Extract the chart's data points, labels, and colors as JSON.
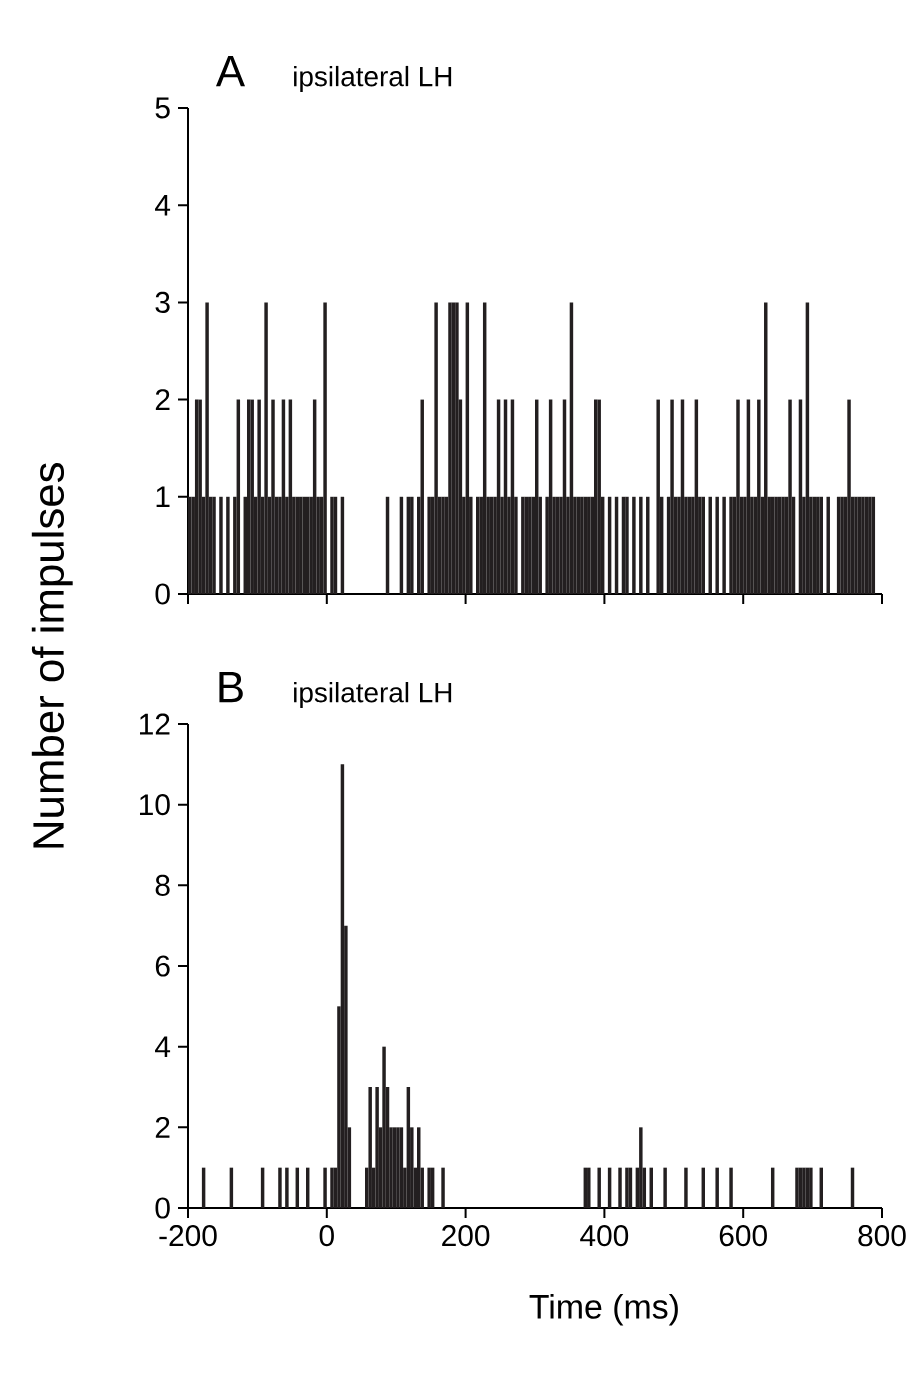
{
  "chart_data": [
    {
      "type": "histogram",
      "title": "ipsilateral LH",
      "annotations": [
        "A"
      ],
      "color": "#231f20",
      "bins": [
        -200,
        -195,
        -190,
        -185,
        -180,
        -175,
        -170,
        -165,
        -160,
        -155,
        -150,
        -145,
        -140,
        -135,
        -130,
        -125,
        -120,
        -115,
        -110,
        -105,
        -100,
        -95,
        -90,
        -85,
        -80,
        -75,
        -70,
        -65,
        -60,
        -55,
        -50,
        -45,
        -40,
        -35,
        -30,
        -25,
        -20,
        -15,
        -10,
        -5,
        0,
        5,
        10,
        15,
        20,
        25,
        30,
        35,
        40,
        45,
        50,
        55,
        60,
        65,
        70,
        75,
        80,
        85,
        90,
        95,
        100,
        105,
        110,
        115,
        120,
        125,
        130,
        135,
        140,
        145,
        150,
        155,
        160,
        165,
        170,
        175,
        180,
        185,
        190,
        195,
        200,
        205,
        210,
        215,
        220,
        225,
        230,
        235,
        240,
        245,
        250,
        255,
        260,
        265,
        270,
        275,
        280,
        285,
        290,
        295,
        300,
        305,
        310,
        315,
        320,
        325,
        330,
        335,
        340,
        345,
        350,
        355,
        360,
        365,
        370,
        375,
        380,
        385,
        390,
        395,
        400,
        405,
        410,
        415,
        420,
        425,
        430,
        435,
        440,
        445,
        450,
        455,
        460,
        465,
        470,
        475,
        480,
        485,
        490,
        495,
        500,
        505,
        510,
        515,
        520,
        525,
        530,
        535,
        540,
        545,
        550,
        555,
        560,
        565,
        570,
        575,
        580,
        585,
        590,
        595,
        600,
        605,
        610,
        615,
        620,
        625,
        630,
        635,
        640,
        645,
        650,
        655,
        660,
        665,
        670,
        675,
        680,
        685,
        690,
        695,
        700,
        705,
        710,
        715,
        720,
        725,
        730,
        735,
        740,
        745,
        750,
        755,
        760,
        765,
        770,
        775,
        780,
        785,
        790,
        795,
        800
      ],
      "values": [
        1,
        1,
        2,
        2,
        1,
        3,
        1,
        1,
        0,
        1,
        0,
        1,
        0,
        1,
        2,
        0,
        1,
        2,
        2,
        1,
        2,
        1,
        3,
        1,
        2,
        1,
        1,
        2,
        1,
        2,
        1,
        1,
        1,
        1,
        1,
        1,
        2,
        1,
        1,
        3,
        0,
        1,
        1,
        0,
        1,
        0,
        0,
        0,
        0,
        0,
        0,
        0,
        0,
        0,
        0,
        0,
        0,
        1,
        0,
        0,
        0,
        1,
        0,
        1,
        1,
        0,
        1,
        2,
        0,
        1,
        1,
        3,
        1,
        1,
        1,
        3,
        3,
        3,
        2,
        1,
        3,
        1,
        0,
        1,
        1,
        3,
        1,
        1,
        1,
        2,
        1,
        2,
        1,
        2,
        1,
        0,
        1,
        1,
        1,
        1,
        2,
        1,
        0,
        1,
        2,
        1,
        1,
        1,
        2,
        1,
        3,
        1,
        1,
        1,
        1,
        1,
        1,
        2,
        2,
        1,
        0,
        1,
        0,
        1,
        0,
        1,
        1,
        0,
        1,
        0,
        1,
        0,
        1,
        0,
        0,
        2,
        1,
        0,
        1,
        2,
        1,
        1,
        2,
        1,
        1,
        1,
        2,
        1,
        1,
        0,
        1,
        0,
        1,
        0,
        1,
        0,
        1,
        1,
        2,
        1,
        1,
        2,
        1,
        1,
        2,
        1,
        3,
        1,
        1,
        1,
        1,
        1,
        1,
        2,
        1,
        0,
        2,
        1,
        3,
        1,
        1,
        1,
        1,
        0,
        1,
        0,
        0,
        1,
        1,
        1,
        2,
        1,
        1,
        1,
        1,
        1,
        1,
        1,
        0,
        0
      ],
      "xlim": [
        -200,
        800
      ],
      "xticks": [
        -200,
        0,
        200,
        400,
        600,
        800
      ],
      "ylim": [
        0,
        5
      ],
      "yticks": [
        0,
        1,
        2,
        3,
        4,
        5
      ],
      "tick_labels": "y"
    },
    {
      "type": "histogram",
      "title": "ipsilateral LH",
      "annotations": [
        "B"
      ],
      "color": "#231f20",
      "xlabel": "Time (ms)",
      "ylabel": "Number of impulses",
      "bins": [
        -200,
        -195,
        -190,
        -185,
        -180,
        -175,
        -170,
        -165,
        -160,
        -155,
        -150,
        -145,
        -140,
        -135,
        -130,
        -125,
        -120,
        -115,
        -110,
        -105,
        -100,
        -95,
        -90,
        -85,
        -80,
        -75,
        -70,
        -65,
        -60,
        -55,
        -50,
        -45,
        -40,
        -35,
        -30,
        -25,
        -20,
        -15,
        -10,
        -5,
        0,
        5,
        10,
        15,
        20,
        25,
        30,
        35,
        40,
        45,
        50,
        55,
        60,
        65,
        70,
        75,
        80,
        85,
        90,
        95,
        100,
        105,
        110,
        115,
        120,
        125,
        130,
        135,
        140,
        145,
        150,
        155,
        160,
        165,
        170,
        175,
        180,
        185,
        190,
        195,
        200,
        205,
        210,
        215,
        220,
        225,
        230,
        235,
        240,
        245,
        250,
        255,
        260,
        265,
        270,
        275,
        280,
        285,
        290,
        295,
        300,
        305,
        310,
        315,
        320,
        325,
        330,
        335,
        340,
        345,
        350,
        355,
        360,
        365,
        370,
        375,
        380,
        385,
        390,
        395,
        400,
        405,
        410,
        415,
        420,
        425,
        430,
        435,
        440,
        445,
        450,
        455,
        460,
        465,
        470,
        475,
        480,
        485,
        490,
        495,
        500,
        505,
        510,
        515,
        520,
        525,
        530,
        535,
        540,
        545,
        550,
        555,
        560,
        565,
        570,
        575,
        580,
        585,
        590,
        595,
        600,
        605,
        610,
        615,
        620,
        625,
        630,
        635,
        640,
        645,
        650,
        655,
        660,
        665,
        670,
        675,
        680,
        685,
        690,
        695,
        700,
        705,
        710,
        715,
        720,
        725,
        730,
        735,
        740,
        745,
        750,
        755,
        760,
        765,
        770,
        775,
        780,
        785,
        790,
        795,
        800
      ],
      "values": [
        0,
        0,
        0,
        0,
        1,
        0,
        0,
        0,
        0,
        0,
        0,
        0,
        1,
        0,
        0,
        0,
        0,
        0,
        0,
        0,
        0,
        1,
        0,
        0,
        0,
        0,
        1,
        0,
        1,
        0,
        0,
        1,
        0,
        0,
        1,
        0,
        0,
        0,
        0,
        1,
        0,
        1,
        1,
        5,
        11,
        7,
        2,
        0,
        0,
        0,
        0,
        1,
        3,
        1,
        3,
        2,
        4,
        3,
        2,
        2,
        2,
        2,
        1,
        3,
        2,
        1,
        2,
        1,
        0,
        1,
        1,
        0,
        0,
        1,
        0,
        0,
        0,
        0,
        0,
        0,
        0,
        0,
        0,
        0,
        0,
        0,
        0,
        0,
        0,
        0,
        0,
        0,
        0,
        0,
        0,
        0,
        0,
        0,
        0,
        0,
        0,
        0,
        0,
        0,
        0,
        0,
        0,
        0,
        0,
        0,
        0,
        0,
        0,
        0,
        1,
        1,
        0,
        0,
        1,
        0,
        0,
        1,
        0,
        0,
        1,
        0,
        1,
        1,
        0,
        1,
        2,
        1,
        0,
        1,
        0,
        0,
        0,
        1,
        0,
        0,
        0,
        0,
        0,
        1,
        0,
        0,
        0,
        0,
        1,
        0,
        0,
        0,
        1,
        0,
        0,
        0,
        1,
        0,
        0,
        0,
        0,
        0,
        0,
        0,
        0,
        0,
        0,
        0,
        1,
        0,
        0,
        0,
        0,
        0,
        0,
        1,
        1,
        1,
        1,
        1,
        0,
        0,
        1,
        0,
        0,
        0,
        0,
        0,
        0,
        0,
        0,
        1,
        0,
        0,
        0,
        0,
        0,
        0,
        0,
        0
      ],
      "xlim": [
        -200,
        800
      ],
      "xticks": [
        -200,
        0,
        200,
        400,
        600,
        800
      ],
      "ylim": [
        0,
        12
      ],
      "yticks": [
        0,
        2,
        4,
        6,
        8,
        10,
        12
      ]
    }
  ]
}
